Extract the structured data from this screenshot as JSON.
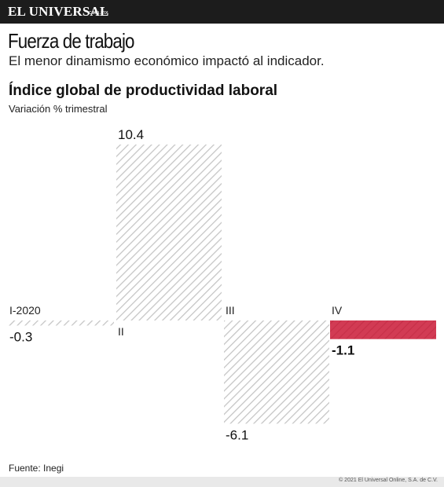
{
  "brand": {
    "name": "EL UNIVERSAL",
    "suffix": "com.mx"
  },
  "header": {
    "title": "Fuerza de trabajo",
    "subtitle": "El menor dinamismo económico impactó al indicador."
  },
  "colors": {
    "accent": "#c8102e",
    "hatch": "#c4c4c4",
    "topbar": "#1c1c1c"
  },
  "chart_data": {
    "type": "bar",
    "title": "Índice global de productividad laboral",
    "subtitle": "Variación % trimestral",
    "categories": [
      "I-2020",
      "II",
      "III",
      "IV"
    ],
    "values": [
      -0.3,
      10.4,
      -6.1,
      -1.1
    ],
    "value_labels": [
      "-0.3",
      "10.4",
      "-6.1",
      "-1.1"
    ],
    "highlight": "IV",
    "grid": false,
    "legend": "none"
  },
  "footer": {
    "source": "Fuente: Inegi",
    "copyright": "© 2021 El Universal Online, S.A. de C.V."
  }
}
